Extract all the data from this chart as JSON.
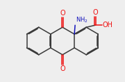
{
  "background_color": "#eeeeee",
  "bond_color": "#3a3a3a",
  "oxygen_color": "#ee1111",
  "nitrogen_color": "#1111bb",
  "line_width": 1.1,
  "dbo": 0.055,
  "figsize": [
    1.8,
    1.18
  ],
  "dpi": 100,
  "xlim": [
    0,
    9.0
  ],
  "ylim": [
    0,
    5.9
  ]
}
